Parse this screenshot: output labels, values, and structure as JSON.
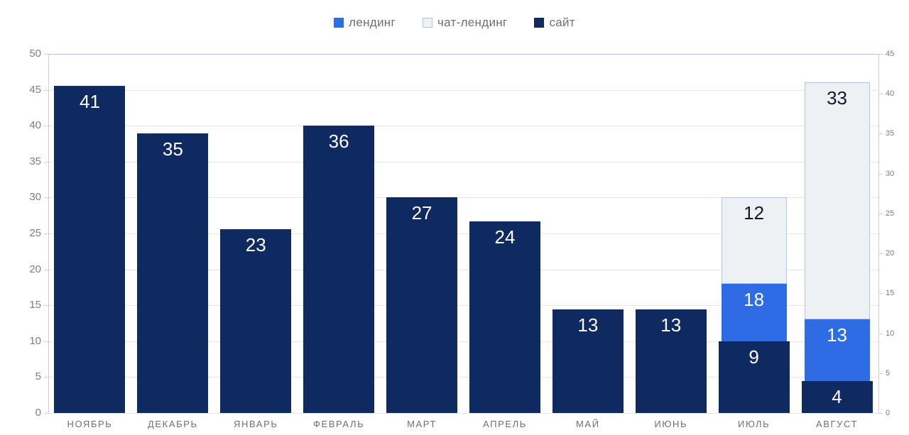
{
  "legend": {
    "items": [
      {
        "label": "лендинг"
      },
      {
        "label": "чат-лендинг"
      },
      {
        "label": "сайт"
      }
    ]
  },
  "colors": {
    "landing": "#2e6ce6",
    "chat_landing_fill": "#eef1f4",
    "chat_landing_border": "#a9c7e7",
    "site": "#0e2a60",
    "grid": "#e6e6e6",
    "axis_line": "#cfcfcf"
  },
  "chart_data": {
    "type": "bar",
    "stacked": true,
    "title": "",
    "legend_position": "top",
    "grid": "horizontal",
    "categories": [
      "НОЯБРЬ",
      "ДЕКАБРЬ",
      "ЯНВАРЬ",
      "ФЕВРАЛЬ",
      "МАРТ",
      "АПРЕЛЬ",
      "МАЙ",
      "ИЮНЬ",
      "ИЮЛЬ",
      "АВГУСТ"
    ],
    "series": [
      {
        "name": "лендинг",
        "axis": "left",
        "values": [
          null,
          null,
          null,
          null,
          null,
          null,
          null,
          null,
          18,
          13
        ]
      },
      {
        "name": "чат-лендинг",
        "axis": "left",
        "values": [
          null,
          null,
          null,
          null,
          null,
          null,
          null,
          null,
          12,
          33
        ]
      },
      {
        "name": "сайт",
        "axis": "right",
        "values": [
          41,
          35,
          23,
          36,
          27,
          24,
          13,
          13,
          9,
          4
        ]
      }
    ],
    "left_axis": {
      "min": 0,
      "max": 50,
      "step": 5,
      "tick_labels": [
        "0",
        "5",
        "10",
        "15",
        "20",
        "25",
        "30",
        "35",
        "40",
        "45",
        "50"
      ]
    },
    "right_axis": {
      "min": 0,
      "max": 45,
      "step": 5,
      "tick_labels": [
        "0",
        "5",
        "10",
        "15",
        "20",
        "25",
        "30",
        "35",
        "40",
        "45"
      ]
    }
  }
}
